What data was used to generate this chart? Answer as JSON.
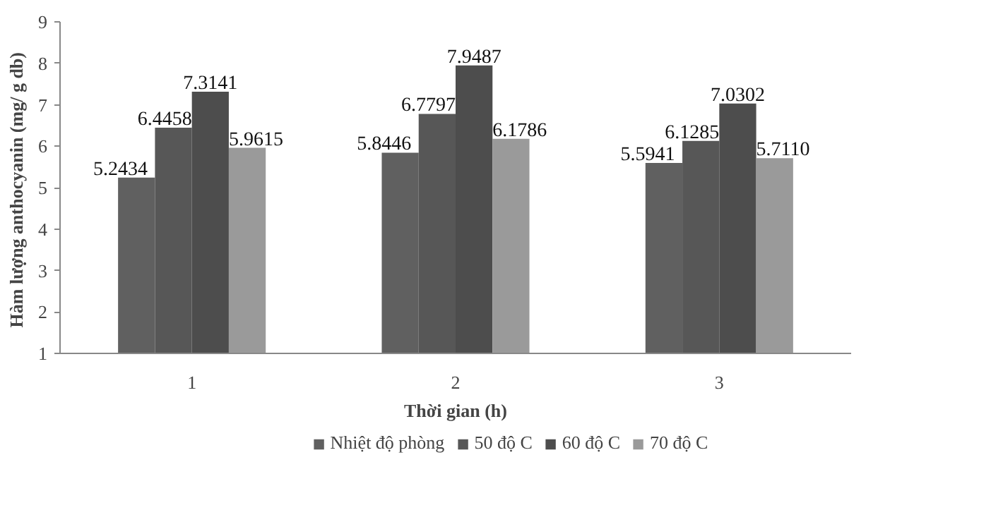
{
  "chart_data": {
    "type": "bar",
    "xlabel": "Thời gian (h)",
    "ylabel": "Hàm lượng anthocyanin  (mg/ g db)",
    "categories": [
      "1",
      "2",
      "3"
    ],
    "ylim": [
      1,
      9
    ],
    "yticks": [
      1,
      2,
      3,
      4,
      5,
      6,
      7,
      8,
      9
    ],
    "grid": false,
    "legend": "bottom",
    "series": [
      {
        "name": "Nhiệt độ phòng",
        "color": "#606060",
        "values": [
          5.2434,
          5.8446,
          5.5941
        ],
        "value_labels": [
          "5.2434",
          "5.8446",
          "5.5941"
        ]
      },
      {
        "name": "50 độ C",
        "color": "#575757",
        "values": [
          6.4458,
          6.7797,
          6.1285
        ],
        "value_labels": [
          "6.4458",
          "6.7797",
          "6.1285"
        ]
      },
      {
        "name": "60 độ C",
        "color": "#4d4d4d",
        "values": [
          7.3141,
          7.9487,
          7.0302
        ],
        "value_labels": [
          "7.3141",
          "7.9487",
          "7.0302"
        ]
      },
      {
        "name": "70 độ C",
        "color": "#9a9a9a",
        "values": [
          5.9615,
          6.1786,
          5.711
        ],
        "value_labels": [
          "5.9615",
          "6.1786",
          "5.7110"
        ]
      }
    ]
  }
}
